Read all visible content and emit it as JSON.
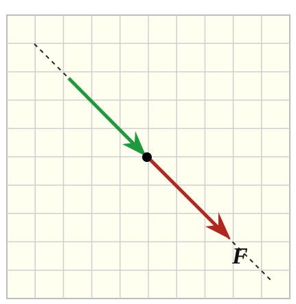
{
  "diagram": {
    "label": "F"
  }
}
